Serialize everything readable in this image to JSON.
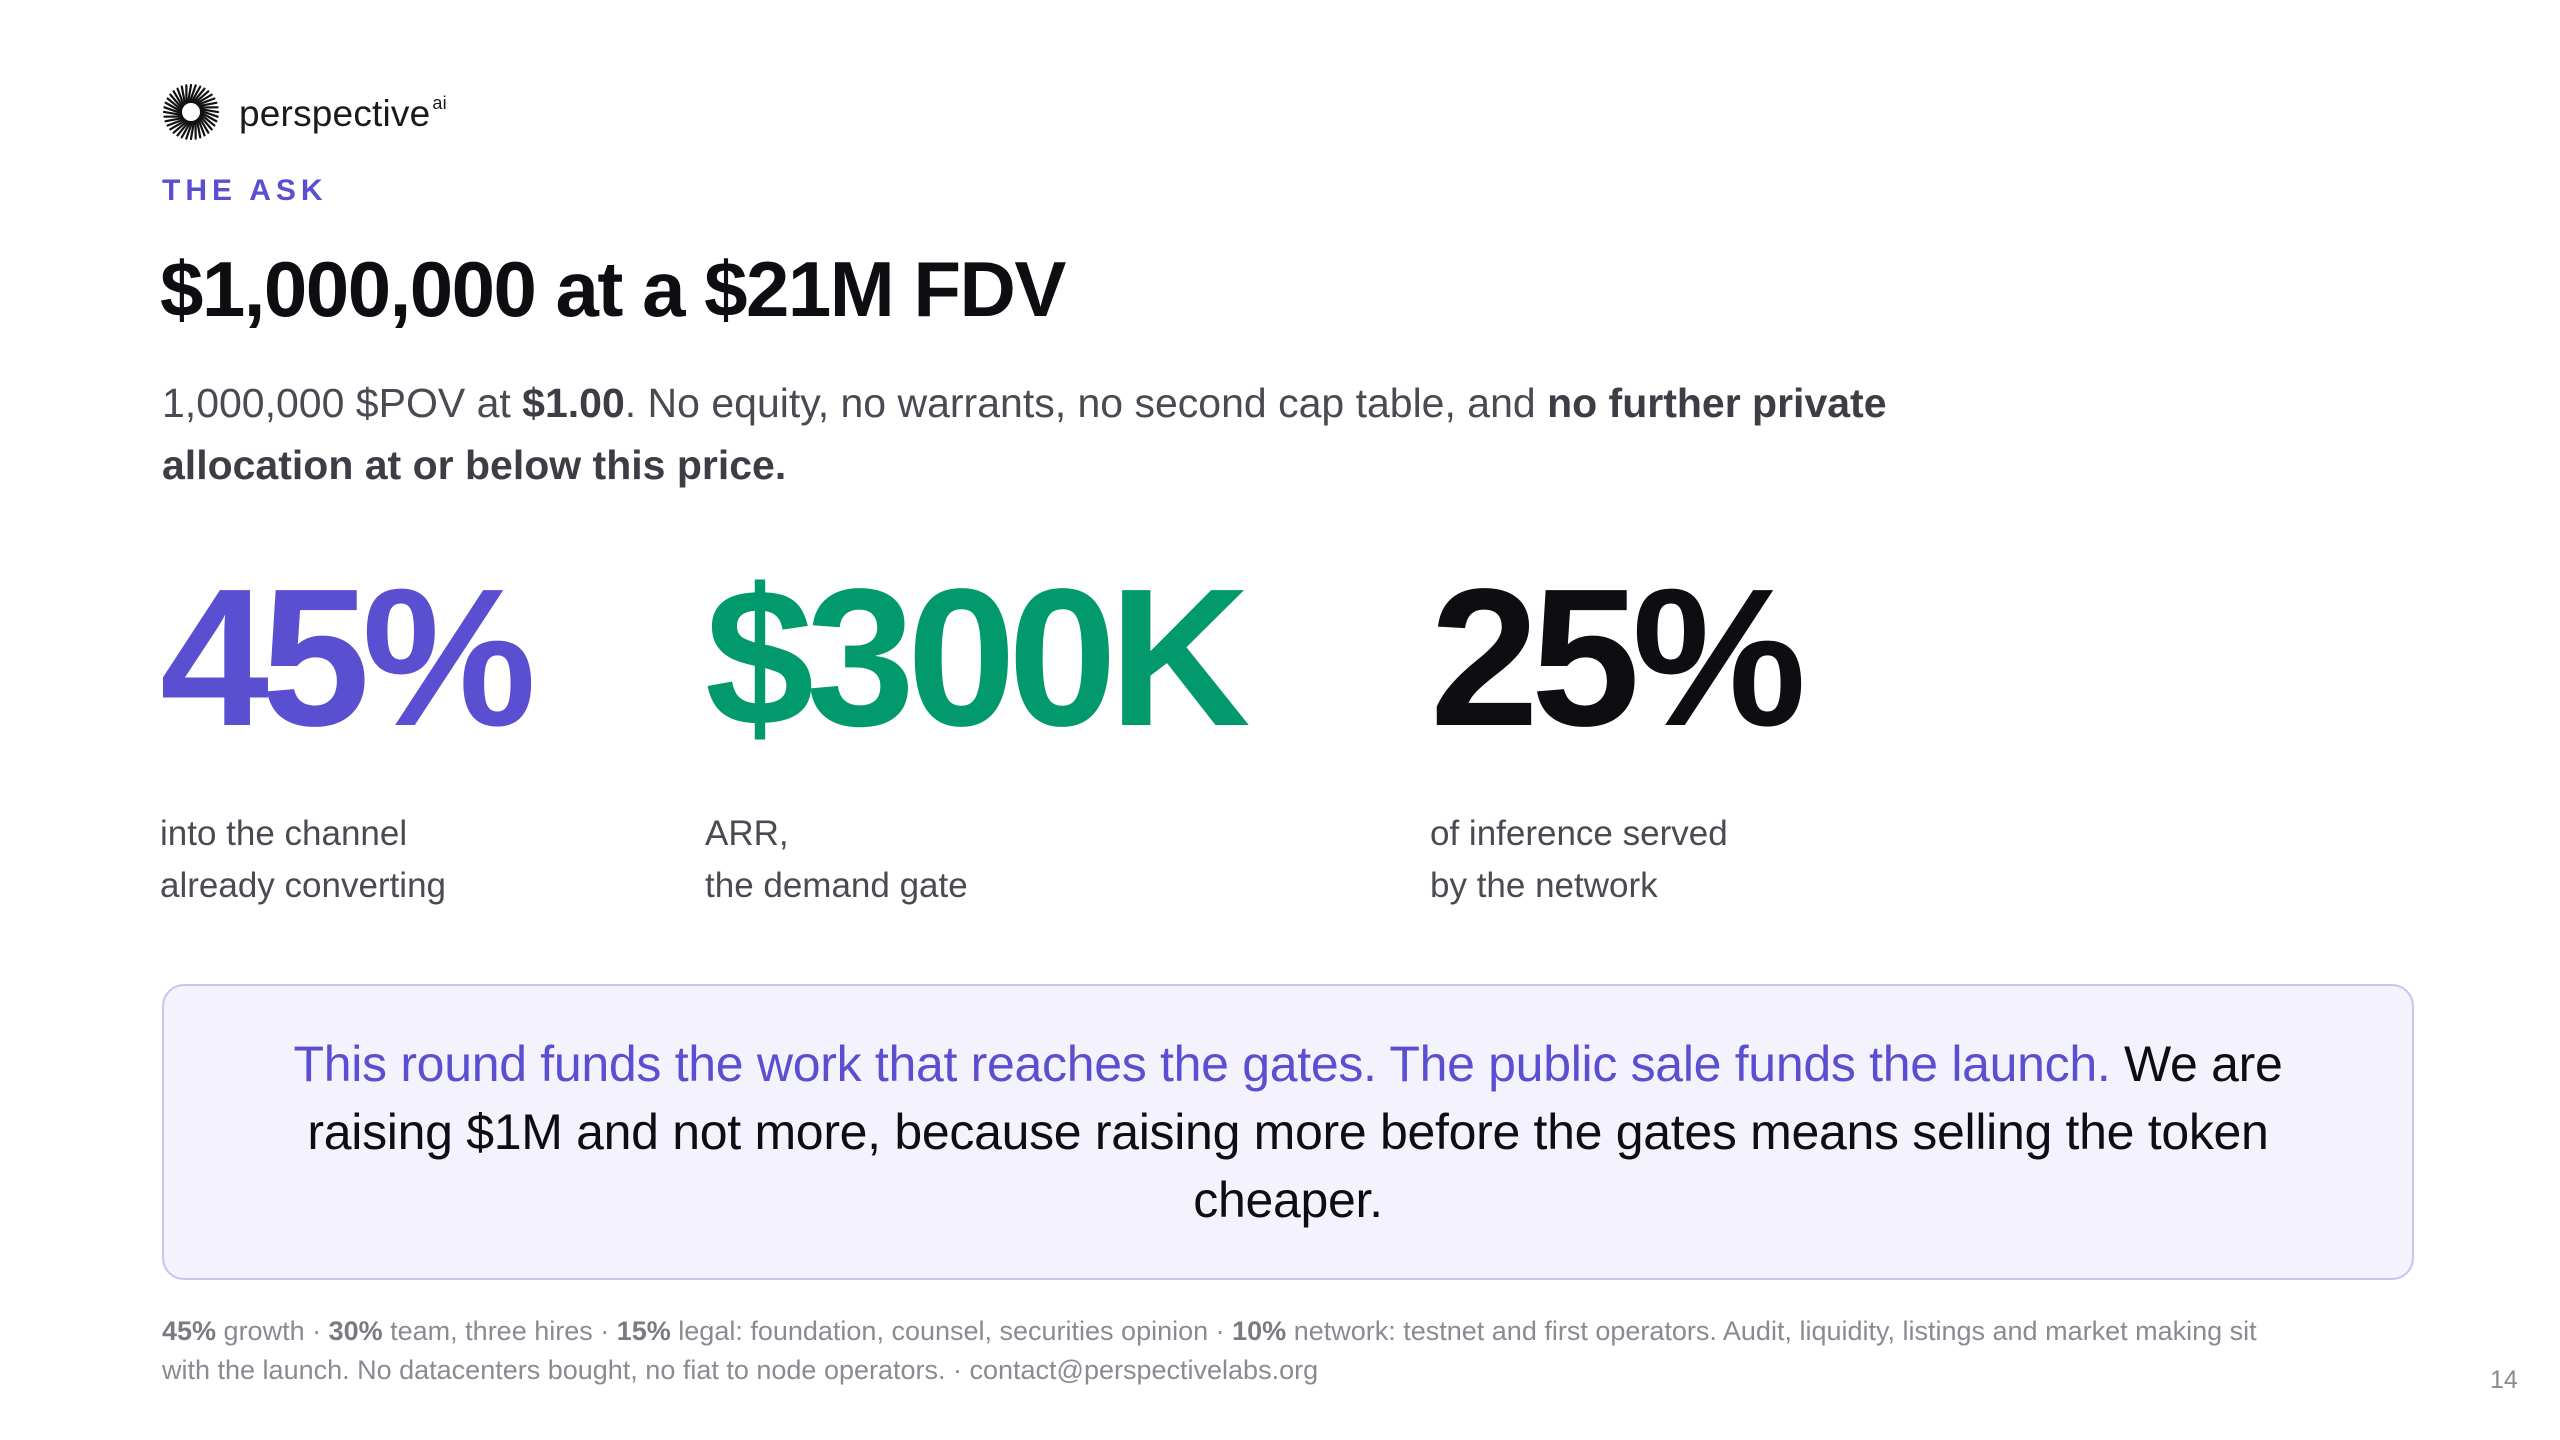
{
  "brand": {
    "name": "perspective",
    "superscript": "ai",
    "logo_icon": "sunburst-logo-icon"
  },
  "eyebrow": "THE ASK",
  "headline": "$1,000,000 at a $21M FDV",
  "subhead": {
    "p1": "1,000,000 $POV at ",
    "b1": "$1.00",
    "p2": ". No equity, no warrants, no second cap table, and ",
    "b2": "no further private allocation at or below this price."
  },
  "stats": [
    {
      "value": "45%",
      "label_line1": "into the channel",
      "label_line2": "already converting",
      "color": "#5b4fd1"
    },
    {
      "value": "$300K",
      "label_line1": "ARR,",
      "label_line2": "the demand gate",
      "color": "#029a6c"
    },
    {
      "value": "25%",
      "label_line1": "of inference served",
      "label_line2": "by the network",
      "color": "#0d0d12"
    }
  ],
  "callout": {
    "accent": "This round funds the work that reaches the gates. The public sale funds the launch.",
    "rest": " We are raising $1M and not more, because raising more before the gates means selling the token cheaper."
  },
  "footnote": {
    "b1": "45%",
    "t1": " growth · ",
    "b2": "30%",
    "t2": " team, three hires · ",
    "b3": "15%",
    "t3": " legal: foundation, counsel, securities opinion · ",
    "b4": "10%",
    "t4": " network: testnet and first operators. Audit, liquidity, listings and market making sit with the launch. No datacenters bought, no fiat to node operators.  ·  contact@perspectivelabs.org"
  },
  "page_number": "14",
  "colors": {
    "accent_purple": "#5b4fd1",
    "accent_green": "#029a6c",
    "callout_bg": "#f3f2fd"
  }
}
